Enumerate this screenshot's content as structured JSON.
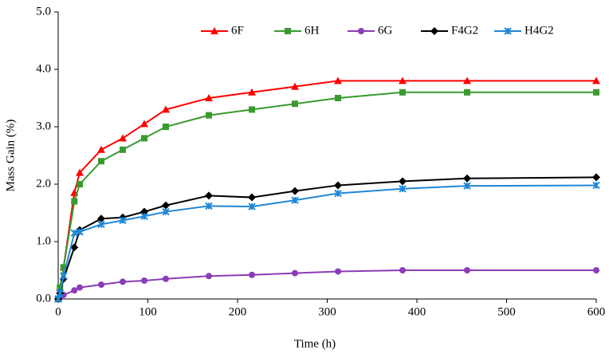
{
  "chart_data": {
    "type": "line",
    "x_label": "Time (h)",
    "y_label": "Mass Gain (%)",
    "x": [
      0,
      2,
      6,
      18,
      24,
      48,
      72,
      96,
      120,
      168,
      216,
      264,
      312,
      384,
      456,
      600
    ],
    "series": [
      {
        "name": "6F",
        "color": "#ff0000",
        "marker": "triangle",
        "values": [
          0,
          0.2,
          0.55,
          1.85,
          2.2,
          2.6,
          2.8,
          3.05,
          3.3,
          3.5,
          3.6,
          3.7,
          3.8,
          3.8,
          3.8,
          3.8
        ]
      },
      {
        "name": "6H",
        "color": "#3a9a2e",
        "marker": "square",
        "values": [
          0,
          0.2,
          0.55,
          1.7,
          2.0,
          2.4,
          2.6,
          2.8,
          3.0,
          3.2,
          3.3,
          3.4,
          3.5,
          3.6,
          3.6,
          3.6
        ]
      },
      {
        "name": "6G",
        "color": "#8a3cb8",
        "marker": "circle",
        "values": [
          0,
          0.02,
          0.07,
          0.15,
          0.2,
          0.25,
          0.3,
          0.32,
          0.35,
          0.4,
          0.42,
          0.45,
          0.48,
          0.5,
          0.5,
          0.5
        ]
      },
      {
        "name": "F4G2",
        "color": "#000000",
        "marker": "diamond",
        "values": [
          0,
          0.1,
          0.35,
          0.9,
          1.2,
          1.4,
          1.42,
          1.52,
          1.63,
          1.8,
          1.77,
          1.88,
          1.98,
          2.05,
          2.1,
          2.12
        ]
      },
      {
        "name": "H4G2",
        "color": "#1f87d6",
        "marker": "cross",
        "values": [
          0,
          0.1,
          0.4,
          1.15,
          1.17,
          1.3,
          1.37,
          1.44,
          1.52,
          1.62,
          1.61,
          1.72,
          1.84,
          1.92,
          1.97,
          1.98
        ]
      }
    ],
    "xlim": [
      0,
      600
    ],
    "xticks": [
      0,
      100,
      200,
      300,
      400,
      500,
      600
    ],
    "ylim": [
      0,
      5
    ],
    "yticks": [
      {
        "value": 0,
        "label": "0.0"
      },
      {
        "value": 1,
        "label": "1.0"
      },
      {
        "value": 2,
        "label": "2.0"
      },
      {
        "value": 3,
        "label": "3.0"
      },
      {
        "value": 4,
        "label": "4.0"
      },
      {
        "value": 5,
        "label": "5.0"
      }
    ],
    "grid": false,
    "legend": "upper right"
  }
}
